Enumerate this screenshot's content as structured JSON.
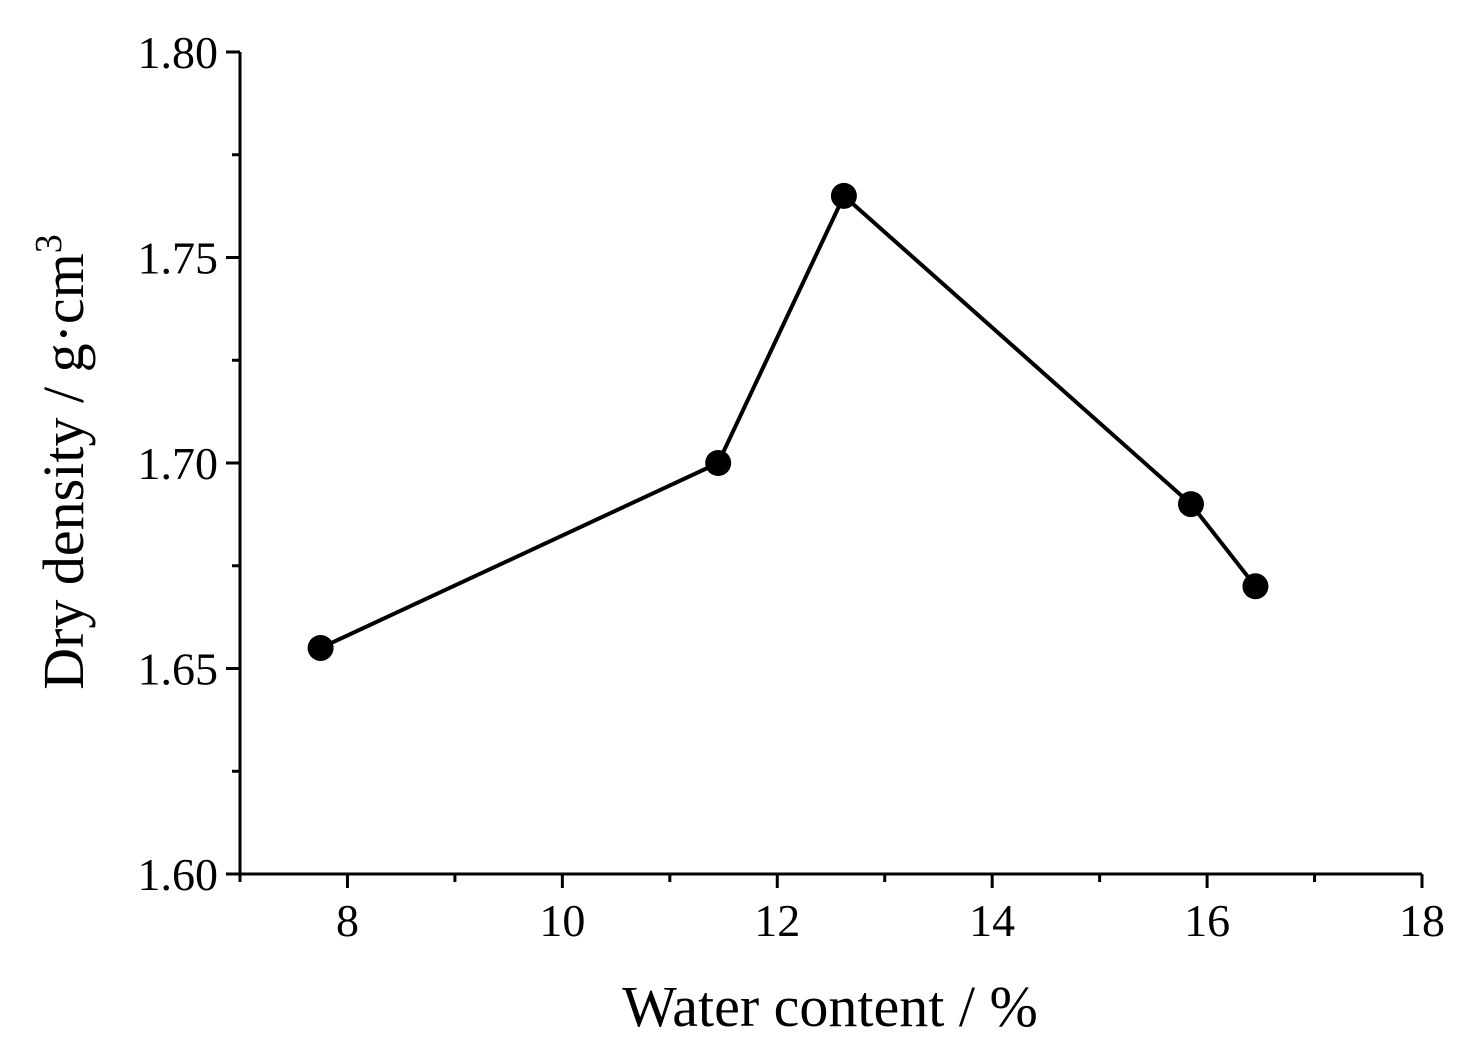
{
  "chart_data": {
    "type": "line",
    "title": "",
    "xlabel": "Water content / %",
    "ylabel": "Dry density / g·cm",
    "ylabel_superscript": "3",
    "xlim": [
      7,
      18
    ],
    "ylim": [
      1.6,
      1.8
    ],
    "x_ticks": [
      8,
      10,
      12,
      14,
      16,
      18
    ],
    "x_tick_labels": [
      "8",
      "10",
      "12",
      "14",
      "16",
      "18"
    ],
    "x_minor_ticks": [
      7,
      9,
      11,
      13,
      15,
      17
    ],
    "y_ticks": [
      1.6,
      1.65,
      1.7,
      1.75,
      1.8
    ],
    "y_tick_labels": [
      "1.60",
      "1.65",
      "1.70",
      "1.75",
      "1.80"
    ],
    "y_minor_ticks": [
      1.625,
      1.675,
      1.725,
      1.775
    ],
    "grid": false,
    "legend": "none",
    "series": [
      {
        "name": "Dry density",
        "marker": "circle",
        "color": "#000000",
        "x": [
          7.75,
          11.45,
          12.62,
          15.85,
          16.45
        ],
        "y": [
          1.655,
          1.7,
          1.765,
          1.69,
          1.67
        ]
      }
    ]
  }
}
